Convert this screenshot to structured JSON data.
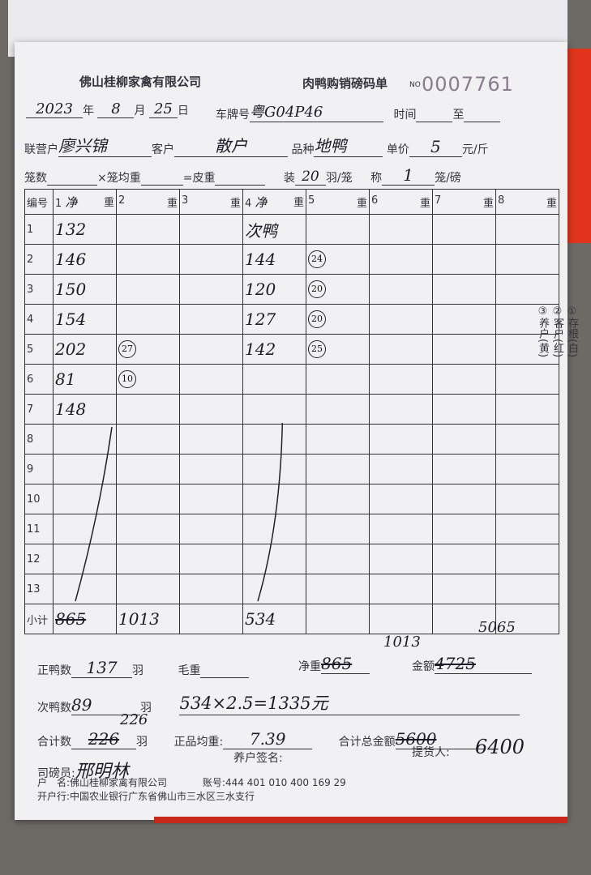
{
  "header": {
    "company": "佛山桂柳家禽有限公司",
    "form_title": "肉鸭购销磅码单",
    "no_label": "NO",
    "serial": "0007761"
  },
  "info": {
    "year": "2023",
    "year_label": "年",
    "month": "8",
    "month_label": "月",
    "day": "25",
    "day_label": "日",
    "plate_label": "车牌号",
    "plate": "粤G04P46",
    "time_label": "时间",
    "to_label": "至",
    "operator_label": "联营户",
    "operator": "廖兴锦",
    "customer_label": "客户",
    "customer": "散户",
    "variety_label": "品种",
    "variety": "地鸭",
    "price_label": "单价",
    "price": "5",
    "price_unit": "元/斤",
    "cages_label": "笼数",
    "avg_cage_label": "×笼均重",
    "tare_label": "=皮重",
    "pack_label": "装",
    "per_cage": "20",
    "per_cage_unit": "羽/笼",
    "weigh_label": "称",
    "cages_per_weigh": "1",
    "weigh_unit": "笼/磅"
  },
  "table": {
    "no_header": "编号",
    "col_headers": [
      "1",
      "2",
      "3",
      "4",
      "5",
      "6",
      "7",
      "8"
    ],
    "weight_label": "重",
    "col1_note": "净",
    "col4_note": "净",
    "rows": [
      {
        "no": "1",
        "c1": "132",
        "c2": "",
        "c4": "次鸭",
        "c5": ""
      },
      {
        "no": "2",
        "c1": "146",
        "c2": "",
        "c4": "144",
        "c5": "24"
      },
      {
        "no": "3",
        "c1": "150",
        "c2": "",
        "c4": "120",
        "c5": "20"
      },
      {
        "no": "4",
        "c1": "154",
        "c2": "",
        "c4": "127",
        "c5": "20"
      },
      {
        "no": "5",
        "c1": "202",
        "c2": "27",
        "c4": "142",
        "c5": "25"
      },
      {
        "no": "6",
        "c1": "81",
        "c2": "10",
        "c4": "",
        "c5": ""
      },
      {
        "no": "7",
        "c1": "148",
        "c2": "",
        "c4": "",
        "c5": ""
      },
      {
        "no": "8"
      },
      {
        "no": "9"
      },
      {
        "no": "10"
      },
      {
        "no": "11"
      },
      {
        "no": "12"
      },
      {
        "no": "13"
      }
    ],
    "subtotal_label": "小计",
    "subtotal_c1": "865",
    "subtotal_c2": "1013",
    "subtotal_c4": "534"
  },
  "footer": {
    "good_label": "正鸭数",
    "good": "137",
    "bird_unit": "羽",
    "gross_label": "毛重",
    "net_label": "净重",
    "net_old": "865",
    "net": "1013",
    "amount_label": "金额",
    "amount_old": "4725",
    "amount": "5065",
    "second_label": "次鸭数",
    "second": "89",
    "calc": "534×2.5=1335元",
    "total_label": "合计数",
    "total_old": "226",
    "total": "226",
    "avg_label": "正品均重:",
    "avg": "7.39",
    "grand_label": "合计总金额",
    "grand_old": "5600",
    "grand": "6400",
    "weigher_label": "司磅员:",
    "weigher": "邢明林",
    "farmer_sign_label": "养户签名:",
    "pickup_label": "提货人:",
    "account_name_label": "户　名:",
    "account_name": "佛山桂柳家禽有限公司",
    "account_no_label": "账号:",
    "account_no": "444 401 010 400 169 29",
    "bank_label": "开户行:",
    "bank": "中国农业银行广东省佛山市三水区三水支行"
  },
  "side": {
    "copy1": "①存根(白)",
    "copy2": "②客户(红)",
    "copy3": "③养户(黄)"
  }
}
